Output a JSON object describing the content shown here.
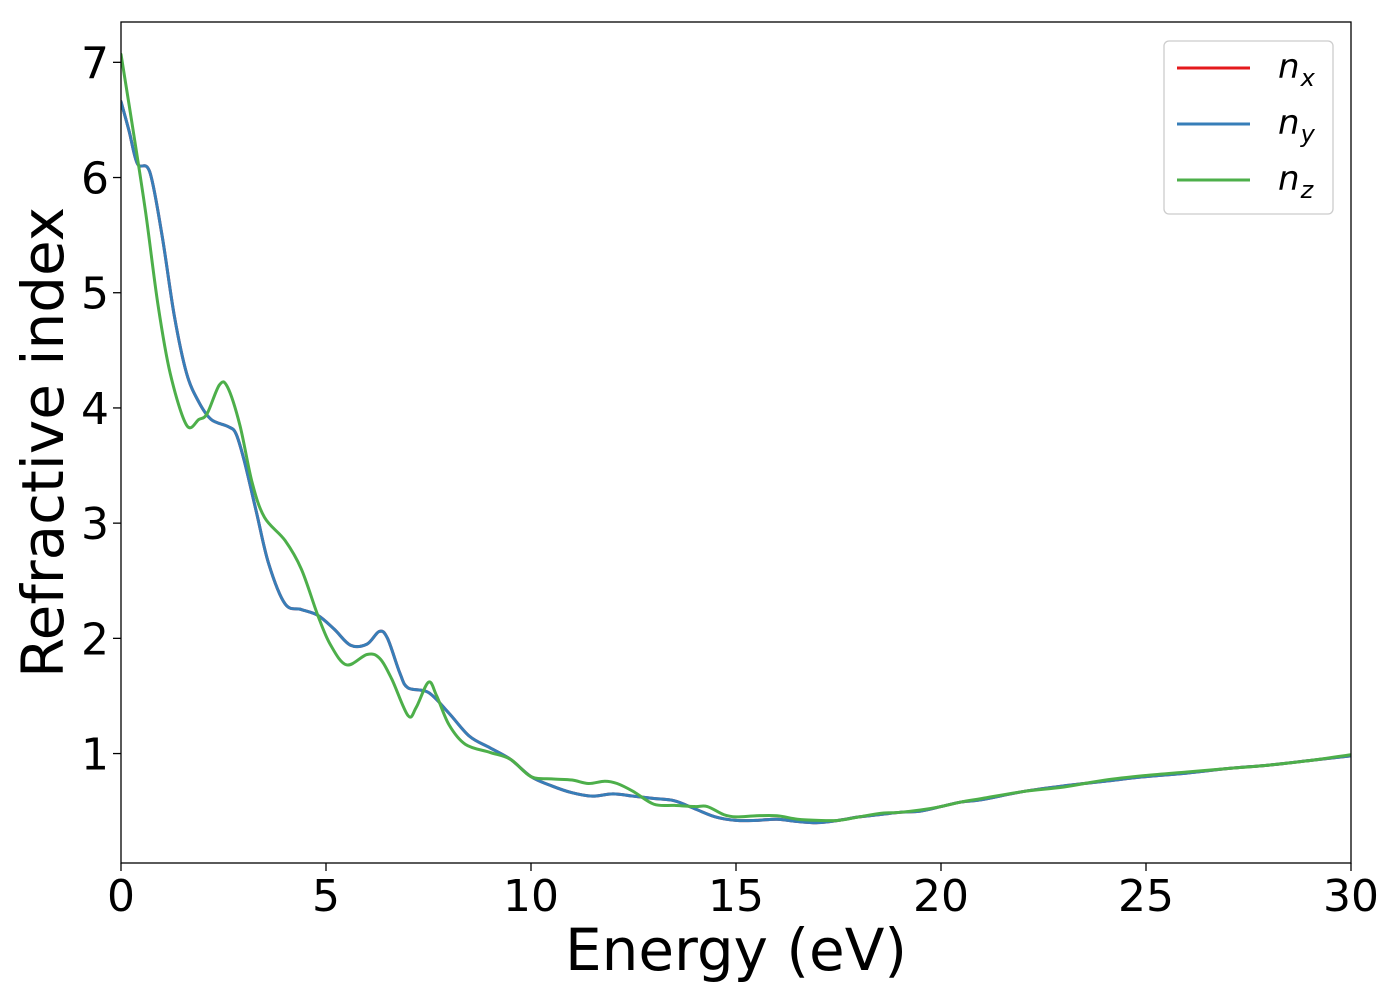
{
  "chart_data": {
    "type": "line",
    "title": "",
    "xlabel": "Energy (eV)",
    "ylabel": "Refractive index",
    "xlim": [
      0,
      30
    ],
    "ylim": [
      0.05,
      7.35
    ],
    "xticks": [
      0,
      5,
      10,
      15,
      20,
      25,
      30
    ],
    "yticks": [
      1,
      2,
      3,
      4,
      5,
      6,
      7
    ],
    "grid": false,
    "legend_position": "top-right",
    "series": [
      {
        "name": "n",
        "subscript": "x",
        "color": "#e41a1c",
        "points": [
          [
            0,
            6.66
          ],
          [
            0.2,
            6.4
          ],
          [
            0.4,
            6.12
          ],
          [
            0.7,
            6.05
          ],
          [
            1.0,
            5.5
          ],
          [
            1.3,
            4.8
          ],
          [
            1.6,
            4.3
          ],
          [
            1.9,
            4.05
          ],
          [
            2.2,
            3.9
          ],
          [
            2.6,
            3.84
          ],
          [
            2.8,
            3.78
          ],
          [
            3.0,
            3.55
          ],
          [
            3.3,
            3.1
          ],
          [
            3.6,
            2.65
          ],
          [
            4.0,
            2.3
          ],
          [
            4.4,
            2.25
          ],
          [
            4.8,
            2.2
          ],
          [
            5.2,
            2.08
          ],
          [
            5.6,
            1.94
          ],
          [
            6.0,
            1.95
          ],
          [
            6.3,
            2.06
          ],
          [
            6.5,
            2.0
          ],
          [
            6.8,
            1.7
          ],
          [
            7.0,
            1.57
          ],
          [
            7.5,
            1.53
          ],
          [
            8.0,
            1.35
          ],
          [
            8.5,
            1.15
          ],
          [
            9.0,
            1.05
          ],
          [
            9.5,
            0.95
          ],
          [
            10.0,
            0.8
          ],
          [
            10.5,
            0.72
          ],
          [
            11.0,
            0.66
          ],
          [
            11.5,
            0.63
          ],
          [
            12.0,
            0.65
          ],
          [
            12.5,
            0.63
          ],
          [
            13.0,
            0.61
          ],
          [
            13.5,
            0.59
          ],
          [
            14.0,
            0.52
          ],
          [
            14.5,
            0.45
          ],
          [
            15.0,
            0.42
          ],
          [
            15.5,
            0.42
          ],
          [
            16.0,
            0.43
          ],
          [
            16.5,
            0.41
          ],
          [
            17.0,
            0.4
          ],
          [
            17.5,
            0.42
          ],
          [
            18.0,
            0.45
          ],
          [
            18.5,
            0.47
          ],
          [
            19.0,
            0.49
          ],
          [
            19.5,
            0.5
          ],
          [
            20.0,
            0.54
          ],
          [
            20.5,
            0.58
          ],
          [
            21.0,
            0.6
          ],
          [
            22.0,
            0.67
          ],
          [
            23.0,
            0.72
          ],
          [
            24.0,
            0.76
          ],
          [
            25.0,
            0.8
          ],
          [
            26.0,
            0.83
          ],
          [
            27.0,
            0.87
          ],
          [
            28.0,
            0.9
          ],
          [
            29.0,
            0.94
          ],
          [
            30.0,
            0.98
          ]
        ]
      },
      {
        "name": "n",
        "subscript": "y",
        "color": "#377eb8",
        "points": [
          [
            0,
            6.66
          ],
          [
            0.2,
            6.4
          ],
          [
            0.4,
            6.12
          ],
          [
            0.7,
            6.05
          ],
          [
            1.0,
            5.5
          ],
          [
            1.3,
            4.8
          ],
          [
            1.6,
            4.3
          ],
          [
            1.9,
            4.05
          ],
          [
            2.2,
            3.9
          ],
          [
            2.6,
            3.84
          ],
          [
            2.8,
            3.78
          ],
          [
            3.0,
            3.55
          ],
          [
            3.3,
            3.1
          ],
          [
            3.6,
            2.65
          ],
          [
            4.0,
            2.3
          ],
          [
            4.4,
            2.25
          ],
          [
            4.8,
            2.2
          ],
          [
            5.2,
            2.08
          ],
          [
            5.6,
            1.94
          ],
          [
            6.0,
            1.95
          ],
          [
            6.3,
            2.06
          ],
          [
            6.5,
            2.0
          ],
          [
            6.8,
            1.7
          ],
          [
            7.0,
            1.57
          ],
          [
            7.5,
            1.53
          ],
          [
            8.0,
            1.35
          ],
          [
            8.5,
            1.15
          ],
          [
            9.0,
            1.05
          ],
          [
            9.5,
            0.95
          ],
          [
            10.0,
            0.8
          ],
          [
            10.5,
            0.72
          ],
          [
            11.0,
            0.66
          ],
          [
            11.5,
            0.63
          ],
          [
            12.0,
            0.65
          ],
          [
            12.5,
            0.63
          ],
          [
            13.0,
            0.61
          ],
          [
            13.5,
            0.59
          ],
          [
            14.0,
            0.52
          ],
          [
            14.5,
            0.45
          ],
          [
            15.0,
            0.42
          ],
          [
            15.5,
            0.42
          ],
          [
            16.0,
            0.43
          ],
          [
            16.5,
            0.41
          ],
          [
            17.0,
            0.4
          ],
          [
            17.5,
            0.42
          ],
          [
            18.0,
            0.45
          ],
          [
            18.5,
            0.47
          ],
          [
            19.0,
            0.49
          ],
          [
            19.5,
            0.5
          ],
          [
            20.0,
            0.54
          ],
          [
            20.5,
            0.58
          ],
          [
            21.0,
            0.6
          ],
          [
            22.0,
            0.67
          ],
          [
            23.0,
            0.72
          ],
          [
            24.0,
            0.76
          ],
          [
            25.0,
            0.8
          ],
          [
            26.0,
            0.83
          ],
          [
            27.0,
            0.87
          ],
          [
            28.0,
            0.9
          ],
          [
            29.0,
            0.94
          ],
          [
            30.0,
            0.98
          ]
        ]
      },
      {
        "name": "n",
        "subscript": "z",
        "color": "#4daf4a",
        "points": [
          [
            0,
            7.07
          ],
          [
            0.3,
            6.4
          ],
          [
            0.6,
            5.7
          ],
          [
            0.9,
            4.9
          ],
          [
            1.2,
            4.3
          ],
          [
            1.6,
            3.85
          ],
          [
            1.9,
            3.9
          ],
          [
            2.1,
            3.95
          ],
          [
            2.4,
            4.2
          ],
          [
            2.6,
            4.18
          ],
          [
            2.9,
            3.85
          ],
          [
            3.2,
            3.35
          ],
          [
            3.5,
            3.05
          ],
          [
            4.0,
            2.85
          ],
          [
            4.4,
            2.6
          ],
          [
            4.8,
            2.2
          ],
          [
            5.1,
            1.95
          ],
          [
            5.5,
            1.77
          ],
          [
            6.0,
            1.86
          ],
          [
            6.3,
            1.83
          ],
          [
            6.6,
            1.65
          ],
          [
            7.0,
            1.33
          ],
          [
            7.2,
            1.4
          ],
          [
            7.5,
            1.62
          ],
          [
            7.7,
            1.5
          ],
          [
            8.0,
            1.25
          ],
          [
            8.4,
            1.08
          ],
          [
            9.0,
            1.01
          ],
          [
            9.5,
            0.95
          ],
          [
            10.0,
            0.8
          ],
          [
            10.5,
            0.78
          ],
          [
            11.0,
            0.77
          ],
          [
            11.4,
            0.74
          ],
          [
            11.8,
            0.76
          ],
          [
            12.1,
            0.74
          ],
          [
            12.5,
            0.67
          ],
          [
            13.0,
            0.56
          ],
          [
            13.5,
            0.55
          ],
          [
            14.0,
            0.54
          ],
          [
            14.3,
            0.54
          ],
          [
            14.7,
            0.47
          ],
          [
            15.0,
            0.45
          ],
          [
            15.5,
            0.46
          ],
          [
            16.0,
            0.46
          ],
          [
            16.5,
            0.43
          ],
          [
            17.0,
            0.42
          ],
          [
            17.5,
            0.42
          ],
          [
            18.0,
            0.45
          ],
          [
            18.5,
            0.48
          ],
          [
            19.0,
            0.49
          ],
          [
            19.5,
            0.51
          ],
          [
            20.0,
            0.54
          ],
          [
            20.5,
            0.58
          ],
          [
            21.0,
            0.61
          ],
          [
            22.0,
            0.67
          ],
          [
            23.0,
            0.71
          ],
          [
            24.0,
            0.77
          ],
          [
            25.0,
            0.81
          ],
          [
            26.0,
            0.84
          ],
          [
            27.0,
            0.87
          ],
          [
            28.0,
            0.9
          ],
          [
            29.0,
            0.94
          ],
          [
            30.0,
            0.99
          ]
        ]
      }
    ]
  }
}
